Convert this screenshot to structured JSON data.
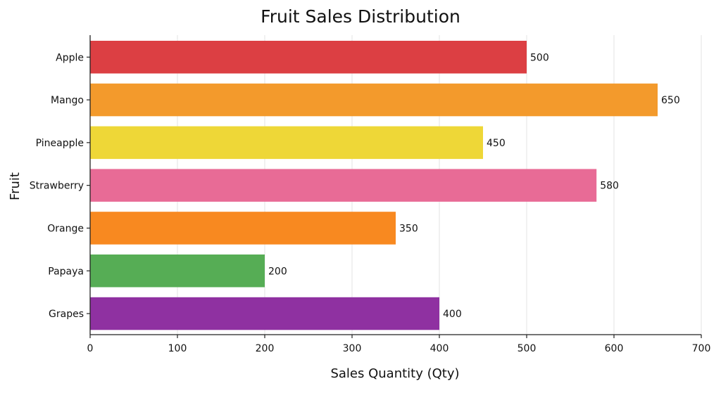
{
  "chart_data": {
    "type": "bar",
    "orientation": "horizontal",
    "title": "Fruit Sales Distribution",
    "xlabel": "Sales Quantity (Qty)",
    "ylabel": "Fruit",
    "categories": [
      "Apple",
      "Mango",
      "Pineapple",
      "Strawberry",
      "Orange",
      "Papaya",
      "Grapes"
    ],
    "values": [
      500,
      650,
      450,
      580,
      350,
      200,
      400
    ],
    "colors": [
      "#dc3f43",
      "#f39a2c",
      "#eed737",
      "#e86b96",
      "#f88920",
      "#56ad55",
      "#8f31a1"
    ],
    "xlim": [
      0,
      700
    ],
    "xticks": [
      0,
      100,
      200,
      300,
      400,
      500,
      600,
      700
    ],
    "grid": true
  }
}
